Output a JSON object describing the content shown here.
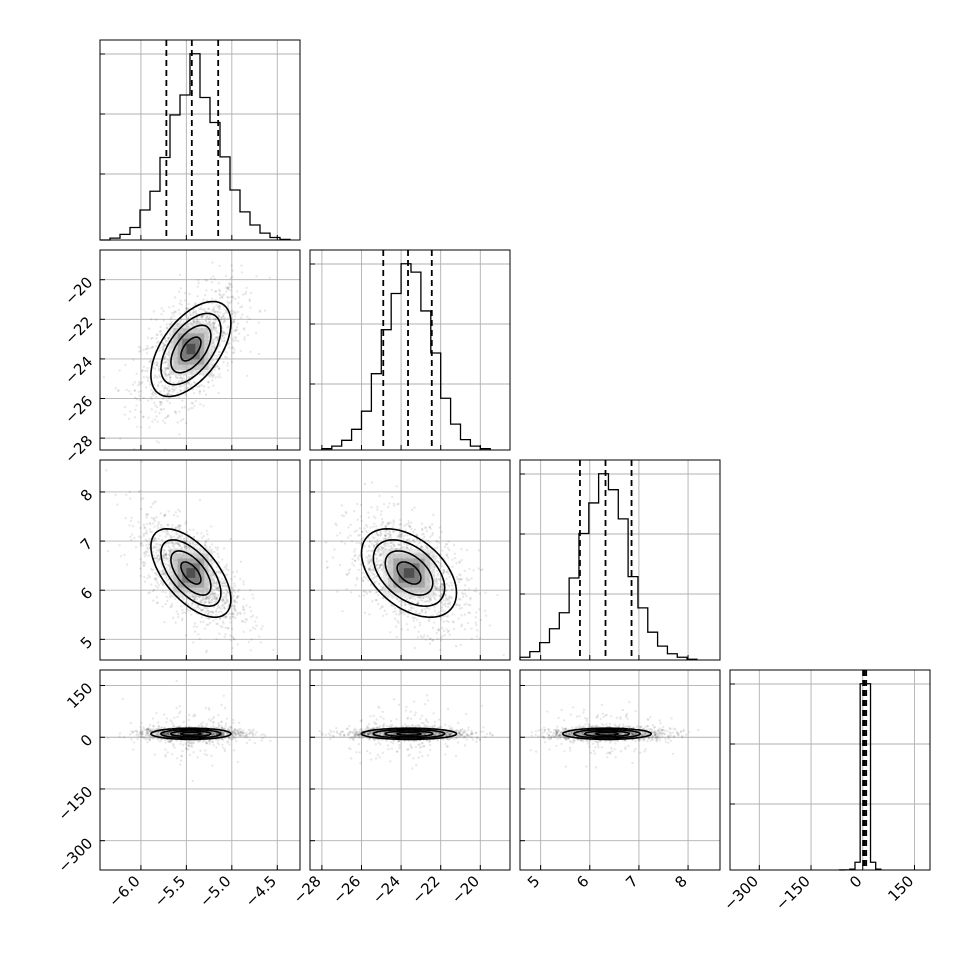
{
  "chart_data": {
    "type": "corner",
    "parameters": [
      {
        "index": 0,
        "ticks": [
          -6.0,
          -5.5,
          -5.0,
          -4.5
        ],
        "tick_labels": [
          "−6.0",
          "−5.5",
          "−5.0",
          "−4.5"
        ],
        "range": [
          -6.45,
          -4.25
        ]
      },
      {
        "index": 1,
        "ticks": [
          -28,
          -26,
          -24,
          -22,
          -20
        ],
        "tick_labels": [
          "−28",
          "−26",
          "−24",
          "−22",
          "−20"
        ],
        "range": [
          -28.6,
          -18.5
        ]
      },
      {
        "index": 2,
        "ticks": [
          5,
          6,
          7,
          8
        ],
        "tick_labels": [
          "5",
          "6",
          "7",
          "8"
        ],
        "range": [
          4.58,
          8.65
        ]
      },
      {
        "index": 3,
        "ticks": [
          -300,
          -150,
          0,
          150
        ],
        "tick_labels": [
          "−300",
          "−150",
          "0",
          "150"
        ],
        "range": [
          -385,
          195
        ]
      }
    ],
    "histograms": [
      {
        "param": 0,
        "bin_edges": [
          -6.45,
          -6.34,
          -6.23,
          -6.12,
          -6.01,
          -5.9,
          -5.79,
          -5.68,
          -5.57,
          -5.46,
          -5.35,
          -5.24,
          -5.13,
          -5.02,
          -4.91,
          -4.8,
          -4.69,
          -4.58,
          -4.47,
          -4.36
        ],
        "counts": [
          0,
          3,
          9,
          20,
          48,
          78,
          132,
          200,
          232,
          298,
          228,
          188,
          133,
          80,
          45,
          24,
          11,
          4,
          1
        ],
        "quantiles": [
          -5.72,
          -5.44,
          -5.15
        ]
      },
      {
        "param": 1,
        "bin_edges": [
          -28.0,
          -27.5,
          -27.0,
          -26.5,
          -26.0,
          -25.5,
          -25.0,
          -24.5,
          -24.0,
          -23.5,
          -23.0,
          -22.5,
          -22.0,
          -21.5,
          -21.0,
          -20.5,
          -20.0,
          -19.5
        ],
        "counts": [
          2,
          6,
          15,
          32,
          60,
          118,
          186,
          242,
          288,
          275,
          215,
          150,
          80,
          40,
          16,
          6,
          2
        ],
        "quantiles": [
          -24.9,
          -23.65,
          -22.45
        ]
      },
      {
        "param": 2,
        "bin_edges": [
          4.58,
          4.78,
          4.98,
          5.18,
          5.38,
          5.58,
          5.78,
          5.98,
          6.18,
          6.38,
          6.58,
          6.78,
          6.98,
          7.18,
          7.38,
          7.58,
          7.78,
          7.98,
          8.18
        ],
        "counts": [
          4,
          12,
          25,
          45,
          68,
          118,
          182,
          226,
          268,
          245,
          203,
          120,
          75,
          40,
          20,
          9,
          4,
          1
        ],
        "quantiles": [
          5.8,
          6.32,
          6.85
        ]
      },
      {
        "param": 3,
        "bin_edges": [
          -67.5,
          -52.5,
          -37.5,
          -22.5,
          -7.5,
          7.5,
          22.5,
          37.5,
          52.5
        ],
        "counts": [
          2,
          5,
          30,
          280,
          6700,
          6700,
          280,
          30
        ],
        "quantiles": [
          1.0,
          5.0,
          10.0
        ]
      }
    ],
    "contours_2d": [
      {
        "x": 0,
        "y": 1,
        "center": [
          -5.45,
          -23.5
        ],
        "sigma": [
          0.22,
          1.2
        ],
        "rho": 0.55
      },
      {
        "x": 0,
        "y": 2,
        "center": [
          -5.45,
          -23.5,
          6.35
        ],
        "sigma": [
          0.22,
          0.45
        ],
        "rho": -0.6,
        "axes_center": [
          -5.45,
          6.35
        ]
      },
      {
        "x": 1,
        "y": 2,
        "center": [
          -23.6,
          6.35
        ],
        "sigma": [
          1.2,
          0.45
        ],
        "rho": -0.45
      },
      {
        "x": 0,
        "y": 3,
        "center": [
          -5.45,
          10
        ],
        "sigma": [
          0.22,
          12
        ],
        "rho": 0.0
      },
      {
        "x": 1,
        "y": 3,
        "center": [
          -23.6,
          10
        ],
        "sigma": [
          1.2,
          12
        ],
        "rho": 0.0
      },
      {
        "x": 2,
        "y": 3,
        "center": [
          6.35,
          10
        ],
        "sigma": [
          0.45,
          12
        ],
        "rho": 0.0
      }
    ],
    "contour_levels_sigma": [
      0.5,
      1.0,
      1.5,
      2.0
    ],
    "grid": true
  }
}
